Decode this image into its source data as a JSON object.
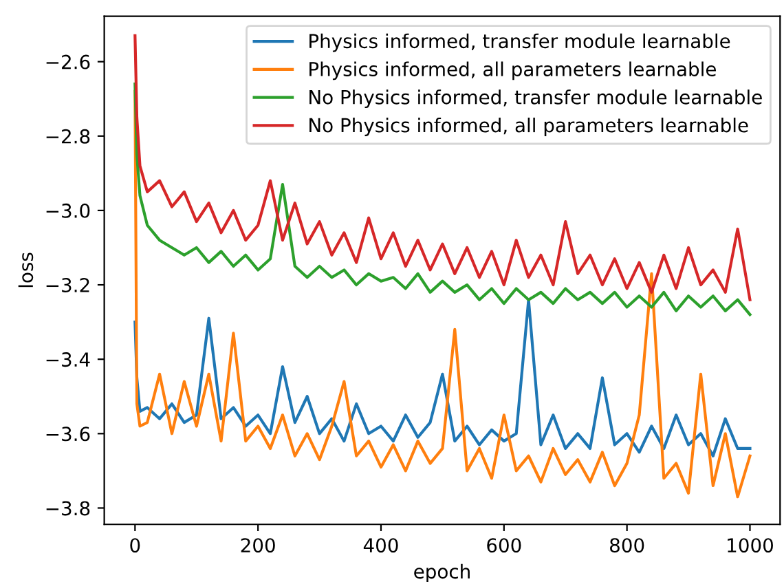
{
  "chart_data": {
    "type": "line",
    "xlabel": "epoch",
    "ylabel": "loss",
    "x": [
      0,
      3,
      8,
      20,
      40,
      60,
      80,
      100,
      120,
      140,
      160,
      180,
      200,
      220,
      240,
      260,
      280,
      300,
      320,
      340,
      360,
      380,
      400,
      420,
      440,
      460,
      480,
      500,
      520,
      540,
      560,
      580,
      600,
      620,
      640,
      660,
      680,
      700,
      720,
      740,
      760,
      780,
      800,
      820,
      840,
      860,
      880,
      900,
      920,
      940,
      960,
      980,
      1000
    ],
    "series": [
      {
        "name": "Physics informed, transfer module learnable",
        "color": "#1f77b4",
        "values": [
          -3.3,
          -3.45,
          -3.54,
          -3.53,
          -3.56,
          -3.52,
          -3.57,
          -3.55,
          -3.29,
          -3.56,
          -3.53,
          -3.58,
          -3.55,
          -3.6,
          -3.42,
          -3.57,
          -3.5,
          -3.6,
          -3.56,
          -3.62,
          -3.52,
          -3.6,
          -3.58,
          -3.62,
          -3.55,
          -3.61,
          -3.57,
          -3.44,
          -3.62,
          -3.58,
          -3.63,
          -3.59,
          -3.62,
          -3.6,
          -3.24,
          -3.63,
          -3.55,
          -3.64,
          -3.6,
          -3.64,
          -3.45,
          -3.63,
          -3.6,
          -3.65,
          -3.58,
          -3.64,
          -3.55,
          -3.63,
          -3.6,
          -3.66,
          -3.56,
          -3.64,
          -3.64
        ]
      },
      {
        "name": "Physics informed, all parameters learnable",
        "color": "#ff7f0e",
        "values": [
          -2.68,
          -3.52,
          -3.58,
          -3.57,
          -3.44,
          -3.6,
          -3.46,
          -3.58,
          -3.44,
          -3.62,
          -3.33,
          -3.62,
          -3.58,
          -3.64,
          -3.55,
          -3.66,
          -3.6,
          -3.67,
          -3.58,
          -3.46,
          -3.66,
          -3.62,
          -3.69,
          -3.63,
          -3.7,
          -3.62,
          -3.68,
          -3.64,
          -3.32,
          -3.7,
          -3.64,
          -3.72,
          -3.55,
          -3.7,
          -3.66,
          -3.73,
          -3.64,
          -3.71,
          -3.67,
          -3.73,
          -3.65,
          -3.74,
          -3.68,
          -3.55,
          -3.17,
          -3.72,
          -3.68,
          -3.76,
          -3.44,
          -3.74,
          -3.6,
          -3.77,
          -3.66
        ]
      },
      {
        "name": "No Physics informed, transfer module learnable",
        "color": "#2ca02c",
        "values": [
          -2.66,
          -2.85,
          -2.96,
          -3.04,
          -3.08,
          -3.1,
          -3.12,
          -3.1,
          -3.14,
          -3.11,
          -3.15,
          -3.12,
          -3.16,
          -3.13,
          -2.93,
          -3.15,
          -3.18,
          -3.15,
          -3.18,
          -3.16,
          -3.2,
          -3.17,
          -3.19,
          -3.18,
          -3.21,
          -3.17,
          -3.22,
          -3.19,
          -3.22,
          -3.2,
          -3.24,
          -3.21,
          -3.25,
          -3.21,
          -3.24,
          -3.22,
          -3.25,
          -3.21,
          -3.24,
          -3.22,
          -3.25,
          -3.22,
          -3.26,
          -3.23,
          -3.26,
          -3.22,
          -3.27,
          -3.23,
          -3.26,
          -3.23,
          -3.27,
          -3.24,
          -3.28
        ]
      },
      {
        "name": "No Physics informed, all parameters learnable",
        "color": "#d62728",
        "values": [
          -2.53,
          -2.75,
          -2.88,
          -2.95,
          -2.92,
          -2.99,
          -2.95,
          -3.03,
          -2.98,
          -3.06,
          -3.0,
          -3.08,
          -3.04,
          -2.92,
          -3.08,
          -2.98,
          -3.09,
          -3.03,
          -3.12,
          -3.06,
          -3.14,
          -3.02,
          -3.13,
          -3.06,
          -3.15,
          -3.08,
          -3.16,
          -3.09,
          -3.17,
          -3.1,
          -3.18,
          -3.11,
          -3.2,
          -3.08,
          -3.18,
          -3.12,
          -3.2,
          -3.03,
          -3.17,
          -3.12,
          -3.2,
          -3.13,
          -3.21,
          -3.14,
          -3.22,
          -3.12,
          -3.21,
          -3.1,
          -3.2,
          -3.16,
          -3.22,
          -3.05,
          -3.24
        ]
      }
    ],
    "xlim": [
      -50,
      1049
    ],
    "xticks": [
      0,
      200,
      400,
      600,
      800,
      1000
    ],
    "ylim": [
      -3.844,
      -2.478
    ],
    "yticks": [
      {
        "value": -3.8,
        "label": "−3.8"
      },
      {
        "value": -3.6,
        "label": "−3.6"
      },
      {
        "value": -3.4,
        "label": "−3.4"
      },
      {
        "value": -3.2,
        "label": "−3.2"
      },
      {
        "value": -3.0,
        "label": "−3.0"
      },
      {
        "value": -2.8,
        "label": "−2.8"
      },
      {
        "value": -2.6,
        "label": "−2.6"
      }
    ],
    "grid": false,
    "legend": "top right",
    "line_style": "solid"
  }
}
